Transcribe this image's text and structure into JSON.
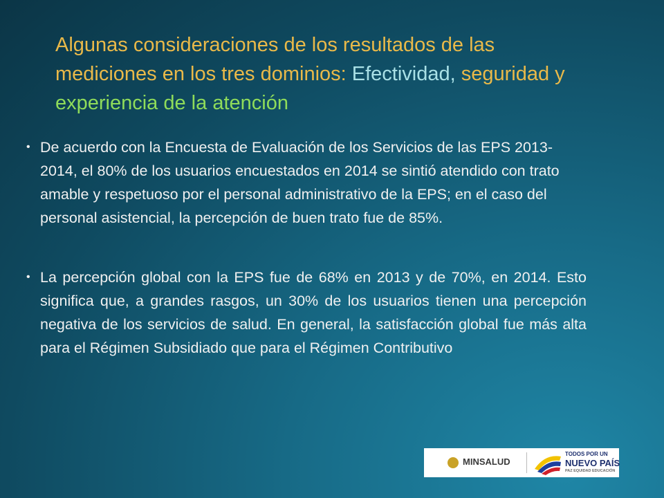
{
  "title": {
    "segments": [
      {
        "text": "Algunas consideraciones de los resultados de las mediciones en los tres dominios: ",
        "color": "#e9b949"
      },
      {
        "text": "Efectividad,",
        "color": "#a9e0e6"
      },
      {
        "text": " seguridad y ",
        "color": "#e9b949"
      },
      {
        "text": "experiencia de la atención",
        "color": "#8fdc5a"
      }
    ]
  },
  "bullets": [
    "De acuerdo con la Encuesta de Evaluación de los Servicios de las EPS 2013-2014, el 80% de los usuarios encuestados en 2014 se sintió atendido con trato amable y respetuoso por el personal administrativo de la EPS; en el caso del personal asistencial, la percepción de buen trato fue de 85%.",
    "La percepción global con la EPS fue de 68% en 2013 y de 70%, en 2014. Esto significa que, a grandes rasgos, un 30% de los usuarios tienen una percepción negativa de los servicios de salud. En general, la satisfacción global fue más alta para el Régimen Subsidiado que para el Régimen Contributivo"
  ],
  "logos": {
    "minsalud": "MINSALUD",
    "slogan_top": "TODOS POR UN",
    "slogan_main": "NUEVO PAÍS",
    "slogan_sub": "PAZ  EQUIDAD  EDUCACIÓN"
  }
}
